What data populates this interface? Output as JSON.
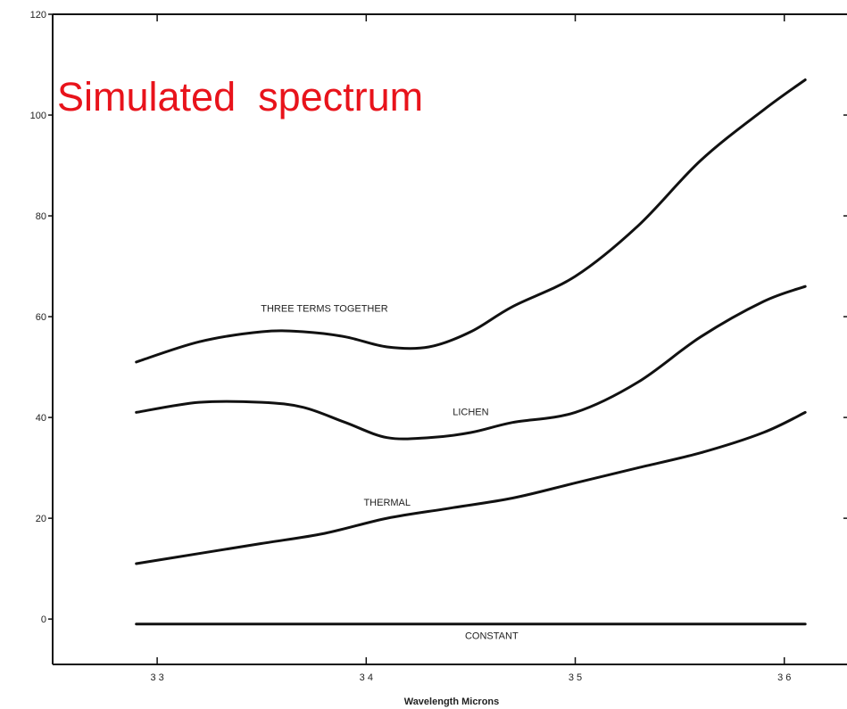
{
  "overlay_title": "Simulated  spectrum",
  "chart_data": {
    "type": "line",
    "title": "",
    "xlabel": "Wavelength Microns",
    "ylabel": "",
    "xlim": [
      3.25,
      3.63
    ],
    "ylim": [
      -9,
      120
    ],
    "grid": false,
    "x_ticks": [
      3.3,
      3.4,
      3.5,
      3.6
    ],
    "x_tick_labels": [
      "3 3",
      "3 4",
      "3 5",
      "3 6"
    ],
    "y_ticks": [
      0,
      20,
      40,
      60,
      80,
      100,
      120
    ],
    "y_tick_labels": [
      "0",
      "20",
      "40",
      "60",
      "80",
      "100",
      "120"
    ],
    "series": [
      {
        "name": "THREE TERMS TOGETHER",
        "x": [
          3.29,
          3.32,
          3.35,
          3.37,
          3.39,
          3.41,
          3.43,
          3.45,
          3.47,
          3.5,
          3.53,
          3.56,
          3.59,
          3.61
        ],
        "y": [
          51,
          55,
          57,
          57,
          56,
          54,
          54,
          57,
          62,
          68,
          78,
          91,
          101,
          107
        ]
      },
      {
        "name": "LICHEN",
        "x": [
          3.29,
          3.32,
          3.35,
          3.37,
          3.39,
          3.41,
          3.43,
          3.45,
          3.47,
          3.5,
          3.53,
          3.56,
          3.59,
          3.61
        ],
        "y": [
          41,
          43,
          43,
          42,
          39,
          36,
          36,
          37,
          39,
          41,
          47,
          56,
          63,
          66
        ]
      },
      {
        "name": "THERMAL",
        "x": [
          3.29,
          3.32,
          3.35,
          3.38,
          3.41,
          3.44,
          3.47,
          3.5,
          3.53,
          3.56,
          3.59,
          3.61
        ],
        "y": [
          11,
          13,
          15,
          17,
          20,
          22,
          24,
          27,
          30,
          33,
          37,
          41
        ]
      },
      {
        "name": "CONSTANT",
        "x": [
          3.29,
          3.61
        ],
        "y": [
          -1,
          -1
        ]
      }
    ]
  }
}
